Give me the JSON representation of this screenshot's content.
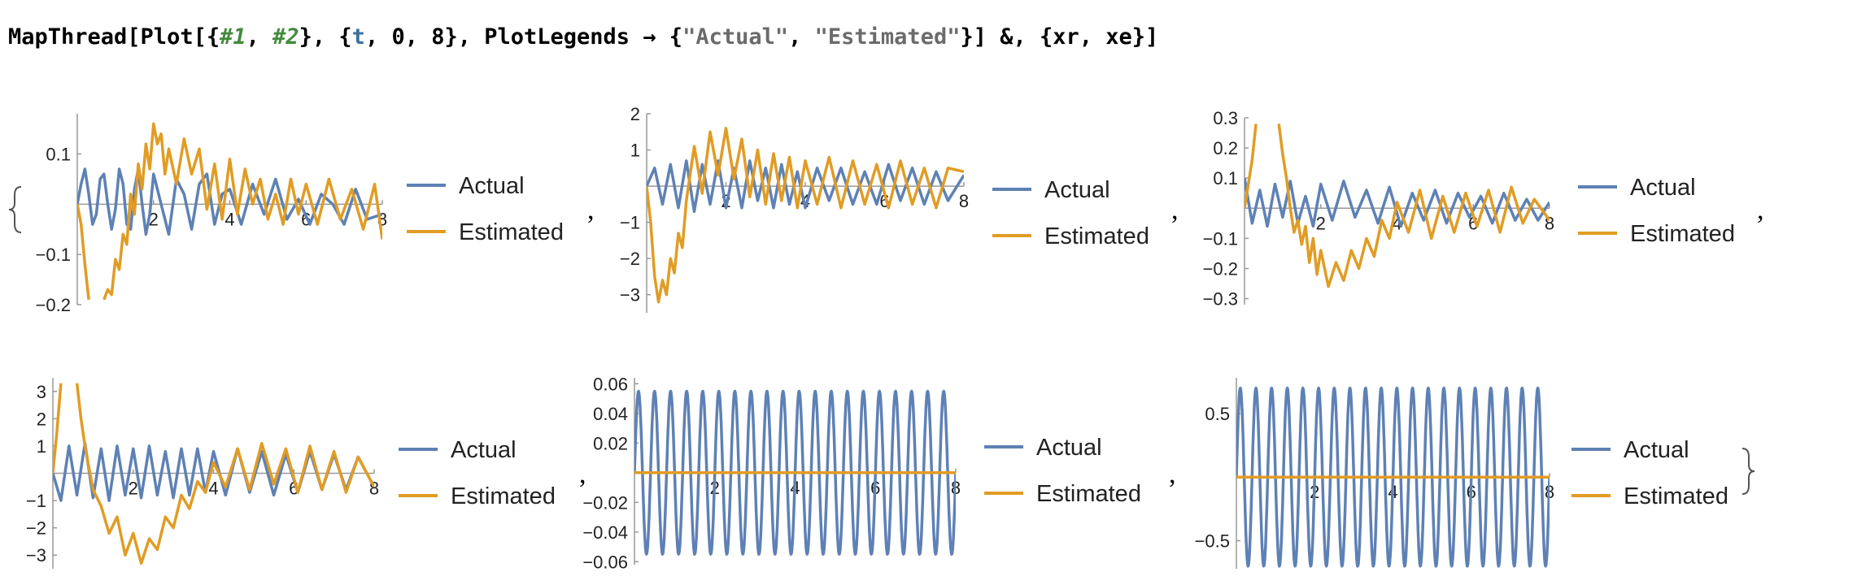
{
  "code": {
    "tokens": [
      {
        "text": "MapThread[Plot[{",
        "cls": "tok-fn"
      },
      {
        "text": "#1",
        "cls": "tok-slot"
      },
      {
        "text": ", ",
        "cls": "tok-fn"
      },
      {
        "text": "#2",
        "cls": "tok-slot"
      },
      {
        "text": "}, {",
        "cls": "tok-fn"
      },
      {
        "text": "t",
        "cls": "tok-var"
      },
      {
        "text": ", 0, 8}, PlotLegends → {",
        "cls": "tok-fn"
      },
      {
        "text": "\"Actual\"",
        "cls": "tok-str"
      },
      {
        "text": ", ",
        "cls": "tok-fn"
      },
      {
        "text": "\"Estimated\"",
        "cls": "tok-str"
      },
      {
        "text": "}] &, {xr, xe}]",
        "cls": "tok-fn"
      }
    ]
  },
  "separators": [
    ",",
    ",",
    ",",
    ",",
    ","
  ],
  "colors": {
    "actual": "#5e81b5",
    "estimated": "#e19c24",
    "axis": "#999999"
  },
  "chart_data": [
    {
      "type": "line",
      "xlim": [
        0,
        8
      ],
      "ylim": [
        -0.2,
        0.18
      ],
      "xticks": [
        2,
        4,
        6,
        8
      ],
      "xtick_labels": [
        "2",
        "4",
        "6",
        "8"
      ],
      "yticks": [
        0.1,
        -0.1,
        -0.2
      ],
      "ytick_labels": [
        "0.1",
        "−0.1",
        "−0.2"
      ],
      "legend": [
        "Actual",
        "Estimated"
      ],
      "series": [
        {
          "name": "Actual",
          "x": [
            0,
            0.1,
            0.2,
            0.3,
            0.4,
            0.5,
            0.6,
            0.7,
            0.8,
            0.9,
            1.0,
            1.1,
            1.2,
            1.3,
            1.4,
            1.5,
            1.6,
            1.7,
            1.8,
            1.9,
            2.0,
            2.2,
            2.4,
            2.6,
            2.8,
            3.0,
            3.2,
            3.4,
            3.6,
            3.8,
            4.0,
            4.3,
            4.6,
            4.9,
            5.2,
            5.5,
            5.8,
            6.1,
            6.4,
            6.7,
            7.0,
            7.3,
            7.6,
            8.0
          ],
          "y": [
            0.0,
            0.04,
            0.07,
            0.02,
            -0.04,
            -0.02,
            0.05,
            0.06,
            0.0,
            -0.05,
            -0.01,
            0.07,
            0.04,
            -0.04,
            -0.05,
            0.03,
            0.07,
            0.0,
            -0.06,
            -0.02,
            0.06,
            0.0,
            -0.06,
            0.05,
            0.02,
            -0.05,
            0.04,
            0.06,
            -0.04,
            0.02,
            0.03,
            -0.04,
            0.04,
            -0.02,
            0.05,
            -0.03,
            0.01,
            -0.04,
            0.02,
            0.0,
            -0.04,
            0.03,
            -0.03,
            -0.02
          ]
        },
        {
          "name": "Estimated",
          "x": [
            0,
            0.1,
            0.2,
            0.3,
            0.4,
            0.5,
            0.6,
            0.7,
            0.8,
            0.9,
            1.0,
            1.1,
            1.2,
            1.3,
            1.4,
            1.5,
            1.6,
            1.7,
            1.8,
            1.9,
            2.0,
            2.1,
            2.2,
            2.3,
            2.4,
            2.6,
            2.8,
            3.0,
            3.2,
            3.4,
            3.6,
            3.8,
            4.0,
            4.2,
            4.4,
            4.6,
            4.8,
            5.0,
            5.2,
            5.4,
            5.6,
            5.8,
            6.0,
            6.3,
            6.6,
            6.9,
            7.2,
            7.5,
            7.8,
            8.0
          ],
          "y": [
            0.0,
            -0.04,
            -0.12,
            -0.19,
            null,
            null,
            null,
            -0.19,
            -0.17,
            -0.18,
            -0.11,
            -0.13,
            -0.06,
            -0.08,
            0.02,
            -0.02,
            0.08,
            0.03,
            0.12,
            0.07,
            0.16,
            0.12,
            0.14,
            0.06,
            0.11,
            0.04,
            0.13,
            0.06,
            0.11,
            -0.01,
            0.08,
            -0.03,
            0.09,
            -0.02,
            0.07,
            0.0,
            0.05,
            -0.03,
            0.02,
            -0.04,
            0.05,
            -0.02,
            0.04,
            -0.04,
            0.05,
            -0.03,
            0.03,
            -0.05,
            0.04,
            -0.07
          ]
        }
      ]
    },
    {
      "type": "line",
      "xlim": [
        0,
        8
      ],
      "ylim": [
        -3.5,
        2.0
      ],
      "xticks": [
        2,
        4,
        6,
        8
      ],
      "xtick_labels": [
        "2",
        "4",
        "6",
        "8"
      ],
      "yticks": [
        2,
        1,
        -1,
        -2,
        -3
      ],
      "ytick_labels": [
        "2",
        "1",
        "−1",
        "−2",
        "−3"
      ],
      "legend": [
        "Actual",
        "Estimated"
      ],
      "series": [
        {
          "name": "Actual",
          "x": [
            0,
            0.2,
            0.4,
            0.6,
            0.8,
            1.0,
            1.2,
            1.4,
            1.6,
            1.8,
            2.0,
            2.2,
            2.4,
            2.6,
            2.8,
            3.0,
            3.2,
            3.4,
            3.6,
            3.8,
            4.0,
            4.3,
            4.6,
            4.9,
            5.2,
            5.5,
            5.8,
            6.1,
            6.4,
            6.7,
            7.0,
            7.3,
            7.6,
            8.0
          ],
          "y": [
            0.0,
            0.5,
            -0.5,
            0.6,
            -0.6,
            0.7,
            -0.7,
            0.6,
            -0.5,
            0.7,
            -0.6,
            0.5,
            -0.6,
            0.7,
            -0.4,
            0.5,
            -0.6,
            0.6,
            -0.5,
            0.4,
            -0.6,
            0.5,
            -0.4,
            0.5,
            -0.5,
            0.4,
            -0.5,
            0.6,
            -0.4,
            0.5,
            -0.5,
            0.4,
            -0.4,
            0.3
          ]
        },
        {
          "name": "Estimated",
          "x": [
            0,
            0.1,
            0.2,
            0.3,
            0.4,
            0.5,
            0.6,
            0.7,
            0.8,
            0.9,
            1.0,
            1.2,
            1.4,
            1.6,
            1.8,
            2.0,
            2.2,
            2.4,
            2.6,
            2.8,
            3.0,
            3.2,
            3.4,
            3.6,
            3.8,
            4.0,
            4.3,
            4.6,
            4.9,
            5.2,
            5.5,
            5.8,
            6.1,
            6.4,
            6.7,
            7.0,
            7.3,
            7.6,
            8.0
          ],
          "y": [
            0.0,
            -1.0,
            -2.5,
            -3.2,
            -2.6,
            -3.0,
            -2.0,
            -2.4,
            -1.3,
            -1.7,
            -0.4,
            1.1,
            -0.2,
            1.5,
            0.3,
            1.6,
            0.2,
            1.3,
            -0.3,
            1.0,
            -0.5,
            0.9,
            -0.4,
            0.8,
            -0.6,
            0.7,
            -0.5,
            0.8,
            -0.6,
            0.7,
            -0.5,
            0.6,
            -0.6,
            0.7,
            -0.5,
            0.5,
            -0.6,
            0.5,
            0.4
          ]
        }
      ]
    },
    {
      "type": "line",
      "xlim": [
        0,
        8
      ],
      "ylim": [
        -0.32,
        0.3
      ],
      "xticks": [
        2,
        4,
        6,
        8
      ],
      "xtick_labels": [
        "2",
        "4",
        "6",
        "8"
      ],
      "yticks": [
        0.3,
        0.2,
        0.1,
        -0.1,
        -0.2,
        -0.3
      ],
      "ytick_labels": [
        "0.3",
        "0.2",
        "0.1",
        "−0.1",
        "−0.2",
        "−0.3"
      ],
      "legend": [
        "Actual",
        "Estimated"
      ],
      "series": [
        {
          "name": "Actual",
          "x": [
            0,
            0.2,
            0.4,
            0.6,
            0.8,
            1.0,
            1.2,
            1.4,
            1.6,
            1.8,
            2.0,
            2.3,
            2.6,
            2.9,
            3.2,
            3.5,
            3.8,
            4.1,
            4.4,
            4.7,
            5.0,
            5.3,
            5.6,
            5.9,
            6.2,
            6.5,
            6.8,
            7.1,
            7.4,
            7.7,
            8.0
          ],
          "y": [
            0.1,
            -0.05,
            0.06,
            -0.06,
            0.08,
            -0.03,
            0.09,
            -0.05,
            0.04,
            -0.06,
            0.08,
            -0.04,
            0.09,
            -0.03,
            0.06,
            -0.05,
            0.07,
            -0.06,
            0.05,
            -0.04,
            0.06,
            -0.05,
            0.05,
            -0.03,
            0.04,
            -0.05,
            0.05,
            -0.04,
            0.03,
            -0.04,
            0.02
          ]
        },
        {
          "name": "Estimated",
          "x": [
            0,
            0.1,
            0.2,
            0.3,
            0.4,
            0.5,
            0.6,
            0.7,
            0.8,
            0.9,
            1.0,
            1.1,
            1.2,
            1.3,
            1.4,
            1.5,
            1.6,
            1.7,
            1.8,
            1.9,
            2.0,
            2.2,
            2.4,
            2.6,
            2.8,
            3.0,
            3.2,
            3.4,
            3.6,
            3.8,
            4.0,
            4.3,
            4.6,
            4.9,
            5.2,
            5.5,
            5.8,
            6.1,
            6.4,
            6.7,
            7.0,
            7.3,
            7.6,
            8.0
          ],
          "y": [
            0.0,
            0.08,
            0.16,
            0.28,
            null,
            null,
            null,
            null,
            null,
            0.28,
            0.18,
            0.1,
            0.0,
            -0.08,
            -0.04,
            -0.12,
            -0.06,
            -0.18,
            -0.1,
            -0.22,
            -0.14,
            -0.26,
            -0.18,
            -0.24,
            -0.14,
            -0.2,
            -0.1,
            -0.16,
            -0.04,
            -0.1,
            0.02,
            -0.08,
            0.06,
            -0.1,
            0.04,
            -0.08,
            0.05,
            -0.06,
            0.06,
            -0.08,
            0.07,
            -0.05,
            0.03,
            -0.04
          ]
        }
      ]
    },
    {
      "type": "line",
      "xlim": [
        0,
        8
      ],
      "ylim": [
        -3.5,
        3.5
      ],
      "xticks": [
        2,
        4,
        6,
        8
      ],
      "xtick_labels": [
        "2",
        "4",
        "6",
        "8"
      ],
      "yticks": [
        3,
        2,
        1,
        -1,
        -2,
        -3
      ],
      "ytick_labels": [
        "3",
        "2",
        "1",
        "−1",
        "−2",
        "−3"
      ],
      "legend": [
        "Actual",
        "Estimated"
      ],
      "series": [
        {
          "name": "Actual",
          "x": [
            0,
            0.2,
            0.4,
            0.6,
            0.8,
            1.0,
            1.2,
            1.4,
            1.6,
            1.8,
            2.0,
            2.2,
            2.4,
            2.6,
            2.8,
            3.0,
            3.2,
            3.4,
            3.6,
            3.8,
            4.0,
            4.3,
            4.6,
            4.9,
            5.2,
            5.5,
            5.8,
            6.1,
            6.4,
            6.7,
            7.0,
            7.3,
            7.6,
            8.0
          ],
          "y": [
            0.0,
            -1.0,
            1.0,
            -0.8,
            1.1,
            -0.9,
            0.9,
            -1.0,
            1.0,
            -0.8,
            0.9,
            -0.9,
            1.0,
            -0.8,
            0.8,
            -0.9,
            0.9,
            -0.8,
            0.9,
            -0.7,
            0.8,
            -0.8,
            0.9,
            -0.7,
            0.8,
            -0.8,
            0.7,
            -0.7,
            0.8,
            -0.6,
            0.7,
            -0.6,
            0.6,
            -0.5
          ]
        },
        {
          "name": "Estimated",
          "x": [
            0,
            0.1,
            0.2,
            0.3,
            0.4,
            0.5,
            0.6,
            0.7,
            0.8,
            0.9,
            1.0,
            1.2,
            1.4,
            1.6,
            1.8,
            2.0,
            2.2,
            2.4,
            2.6,
            2.8,
            3.0,
            3.2,
            3.4,
            3.6,
            3.8,
            4.0,
            4.3,
            4.6,
            4.9,
            5.2,
            5.5,
            5.8,
            6.1,
            6.4,
            6.7,
            7.0,
            7.3,
            7.6,
            8.0
          ],
          "y": [
            0.0,
            1.5,
            3.3,
            null,
            null,
            null,
            3.3,
            2.0,
            1.0,
            0.2,
            -0.6,
            -1.2,
            -2.2,
            -1.6,
            -3.0,
            -2.2,
            -3.3,
            -2.4,
            -2.8,
            -1.6,
            -2.0,
            -0.8,
            -1.3,
            -0.3,
            -0.7,
            0.4,
            -0.5,
            0.9,
            -0.6,
            1.1,
            -0.4,
            0.9,
            -0.7,
            1.0,
            -0.6,
            0.8,
            -0.7,
            0.6,
            -0.5
          ]
        }
      ]
    },
    {
      "type": "line",
      "xlim": [
        0,
        8
      ],
      "ylim": [
        -0.062,
        0.064
      ],
      "xticks": [
        2,
        4,
        6,
        8
      ],
      "xtick_labels": [
        "2",
        "4",
        "6",
        "8"
      ],
      "yticks": [
        0.06,
        0.04,
        0.02,
        -0.02,
        -0.04,
        -0.06
      ],
      "ytick_labels": [
        "0.06",
        "0.04",
        "0.02",
        "−0.02",
        "−0.04",
        "−0.06"
      ],
      "legend": [
        "Actual",
        "Estimated"
      ],
      "series": [
        {
          "name": "Actual",
          "function": "sine",
          "amplitude": 0.055,
          "frequency": 2.5,
          "x_range": [
            0,
            8
          ]
        },
        {
          "name": "Estimated",
          "x": [
            0,
            8
          ],
          "y": [
            0,
            0
          ]
        }
      ]
    },
    {
      "type": "line",
      "xlim": [
        0,
        8
      ],
      "ylim": [
        -0.72,
        0.78
      ],
      "xticks": [
        2,
        4,
        6,
        8
      ],
      "xtick_labels": [
        "2",
        "4",
        "6",
        "8"
      ],
      "yticks": [
        0.5,
        -0.5
      ],
      "ytick_labels": [
        "0.5",
        "−0.5"
      ],
      "legend": [
        "Actual",
        "Estimated"
      ],
      "series": [
        {
          "name": "Actual",
          "function": "sine",
          "amplitude": 0.7,
          "frequency": 2.5,
          "x_range": [
            0,
            8
          ]
        },
        {
          "name": "Estimated",
          "x": [
            0,
            8
          ],
          "y": [
            0,
            0
          ]
        }
      ]
    }
  ]
}
